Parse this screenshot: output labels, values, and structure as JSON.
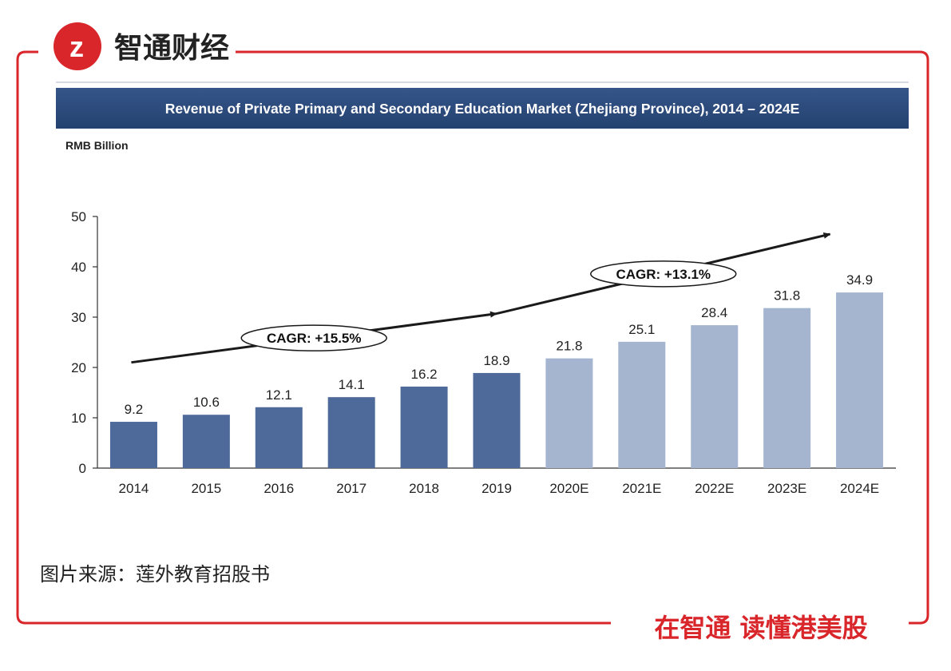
{
  "brand": {
    "logo_text": "智通财经",
    "slogan": "在智通 读懂港美股",
    "color": "#d9262b"
  },
  "source_note": "图片来源：莲外教育招股书",
  "chart_data": {
    "type": "bar",
    "title": "Revenue of Private Primary and Secondary Education Market (Zhejiang Province), 2014 – 2024E",
    "unit_label": "RMB Billion",
    "xlabel": "",
    "ylabel": "RMB Billion",
    "ylim": [
      0,
      50
    ],
    "yticks": [
      0,
      10,
      20,
      30,
      40,
      50
    ],
    "grid": false,
    "categories": [
      "2014",
      "2015",
      "2016",
      "2017",
      "2018",
      "2019",
      "2020E",
      "2021E",
      "2022E",
      "2023E",
      "2024E"
    ],
    "values": [
      9.2,
      10.6,
      12.1,
      14.1,
      16.2,
      18.9,
      21.8,
      25.1,
      28.4,
      31.8,
      34.9
    ],
    "value_labels": [
      "9.2",
      "10.6",
      "12.1",
      "14.1",
      "16.2",
      "18.9",
      "21.8",
      "25.1",
      "28.4",
      "31.8",
      "34.9"
    ],
    "bar_colors": [
      "#4d6a9a",
      "#4d6a9a",
      "#4d6a9a",
      "#4d6a9a",
      "#4d6a9a",
      "#4d6a9a",
      "#a5b5d0",
      "#a5b5d0",
      "#a5b5d0",
      "#a5b5d0",
      "#a5b5d0"
    ],
    "title_bar_color": "#2a4a7d",
    "annotations": [
      {
        "text": "CAGR: +15.5%",
        "from_category": "2014",
        "to_category": "2019",
        "line_start_value": 21,
        "line_end_value": 30.7
      },
      {
        "text": "CAGR: +13.1%",
        "from_category": "2019",
        "to_category": "2024E",
        "line_start_value": 30.7,
        "line_end_value": 46.5
      }
    ]
  }
}
